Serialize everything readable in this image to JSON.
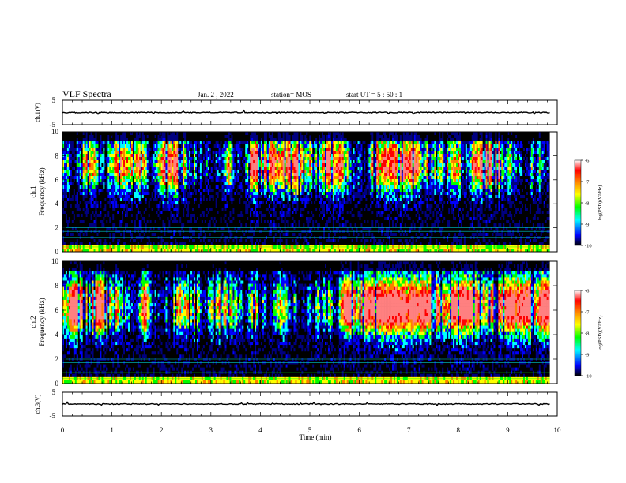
{
  "header": {
    "title": "VLF Spectra",
    "date": "Jan. 2 , 2022",
    "station": "station= MOS",
    "start_time": "start UT = 5 : 50 : 1"
  },
  "chart_data": [
    {
      "type": "line",
      "panel": "ch1-waveform",
      "ylabel": "ch.1(V)",
      "ylim": [
        -5,
        5
      ],
      "yticks": [
        "5",
        "-5"
      ],
      "xlim": [
        0,
        10
      ],
      "baseline": 0
    },
    {
      "type": "heatmap",
      "panel": "ch1-spectrogram",
      "ylabel": "ch.1 Frequency (kHz)",
      "ylabel_top": "ch.1",
      "ylabel_bottom": "Frequency (kHz)",
      "ylim": [
        0,
        10
      ],
      "yticks": [
        "0",
        "2",
        "4",
        "6",
        "8",
        "10"
      ],
      "xlim": [
        0,
        10
      ],
      "colorbar": {
        "label": "log(PSD)(V²/Hz)",
        "range": [
          -10,
          -6
        ],
        "ticks": [
          "-6",
          "-7",
          "-8",
          "-9",
          "-10"
        ]
      }
    },
    {
      "type": "heatmap",
      "panel": "ch2-spectrogram",
      "ylabel": "ch.2 Frequency (kHz)",
      "ylabel_top": "ch.2",
      "ylabel_bottom": "Frequency (kHz)",
      "ylim": [
        0,
        10
      ],
      "yticks": [
        "0",
        "2",
        "4",
        "6",
        "8",
        "10"
      ],
      "xlim": [
        0,
        10
      ],
      "colorbar": {
        "label": "log(PSD)(V²/Hz)",
        "range": [
          -10,
          -6
        ],
        "ticks": [
          "-6",
          "-7",
          "-8",
          "-9",
          "-10"
        ]
      }
    },
    {
      "type": "line",
      "panel": "ch3-waveform",
      "ylabel": "ch.3(V)",
      "ylim": [
        -5,
        5
      ],
      "yticks": [
        "5",
        "-5"
      ],
      "xlim": [
        0,
        10
      ],
      "baseline": 0
    }
  ],
  "xaxis": {
    "label": "Time (min)",
    "ticks": [
      "0",
      "1",
      "2",
      "3",
      "4",
      "5",
      "6",
      "7",
      "8",
      "9",
      "10"
    ],
    "data_end": 9.85
  },
  "colors": {
    "black": "#000000",
    "navy": "#000080",
    "blue": "#0000ff",
    "cyan": "#00ffff",
    "green": "#00ff00",
    "yellow": "#ffff00",
    "orange": "#ff8000",
    "red": "#ff0000",
    "pink": "#ff8080",
    "white": "#ffffff"
  }
}
